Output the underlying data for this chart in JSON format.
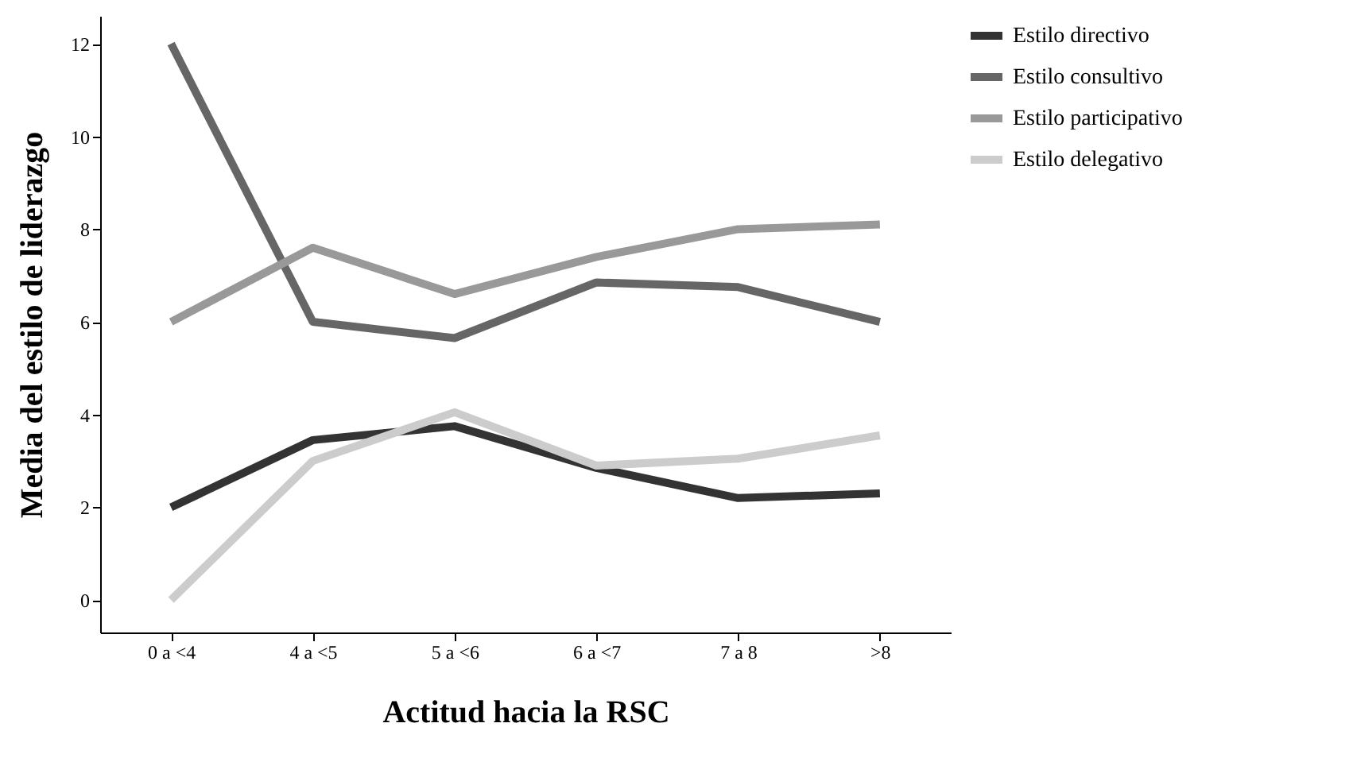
{
  "chart_data": {
    "type": "line",
    "xlabel": "Actitud hacia la RSC",
    "ylabel": "Media del estilo de liderazgo",
    "categories": [
      "0 a <4",
      "4 a <5",
      "5 a <6",
      "6 a <7",
      "7 a 8",
      ">8"
    ],
    "ylim": [
      -0.7,
      12.6
    ],
    "yticks": [
      0,
      2,
      4,
      6,
      8,
      10,
      12
    ],
    "grid": false,
    "legend": "right",
    "series": [
      {
        "name": "Estilo directivo",
        "color": "#333333",
        "values": [
          2.0,
          3.45,
          3.75,
          2.85,
          2.2,
          2.3
        ]
      },
      {
        "name": "Estilo consultivo",
        "color": "#666666",
        "values": [
          12.0,
          6.0,
          5.65,
          6.85,
          6.75,
          6.0
        ]
      },
      {
        "name": "Estilo participativo",
        "color": "#999999",
        "values": [
          6.0,
          7.6,
          6.6,
          7.4,
          8.0,
          8.1
        ]
      },
      {
        "name": "Estilo delegativo",
        "color": "#cccccc",
        "values": [
          0.0,
          3.0,
          4.05,
          2.9,
          3.05,
          3.55
        ]
      }
    ]
  }
}
